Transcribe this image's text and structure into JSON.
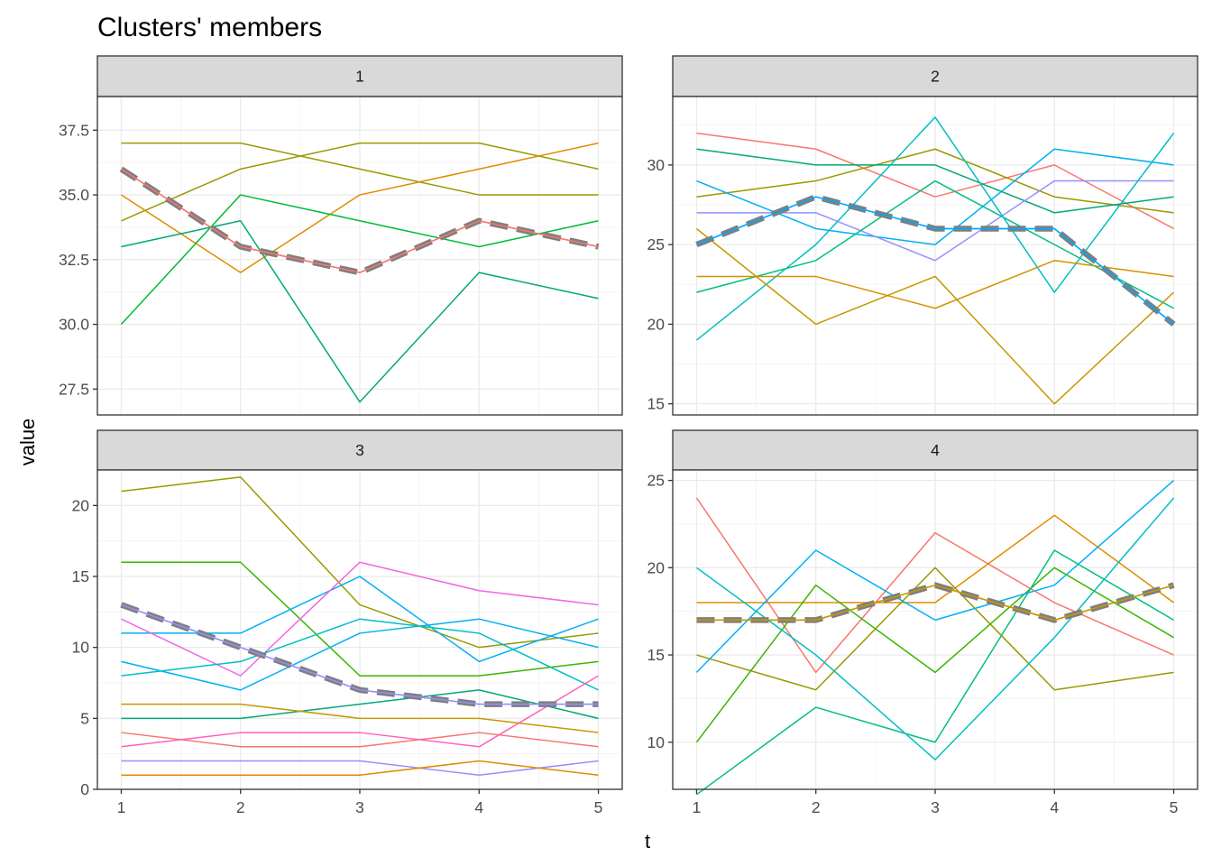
{
  "chart_data": {
    "type": "line",
    "title": "Clusters' members",
    "xlabel": "t",
    "ylabel": "value",
    "x": [
      1,
      2,
      3,
      4,
      5
    ],
    "grid": true,
    "legend": "none",
    "panels": [
      {
        "label": "1",
        "ylim": [
          26.5,
          38.8
        ],
        "yticks": [
          27.5,
          30.0,
          32.5,
          35.0,
          37.5
        ],
        "ytick_labels": [
          "27.5",
          "30.0",
          "32.5",
          "35.0",
          "37.5"
        ],
        "series": [
          {
            "color": "#F8766D",
            "values": [
              36,
              33,
              32,
              34,
              33
            ]
          },
          {
            "color": "#999900",
            "values": [
              37,
              37,
              36,
              35,
              35
            ]
          },
          {
            "color": "#999900",
            "values": [
              34,
              36,
              37,
              37,
              36
            ]
          },
          {
            "color": "#E08B00",
            "values": [
              35,
              32,
              35,
              36,
              37
            ]
          },
          {
            "color": "#00BA38",
            "values": [
              30,
              35,
              34,
              33,
              34
            ]
          },
          {
            "color": "#00A877",
            "values": [
              33,
              34,
              27,
              32,
              31
            ]
          }
        ],
        "centroid": {
          "color": "#F8766D",
          "values": [
            36,
            33,
            32,
            34,
            33
          ]
        }
      },
      {
        "label": "2",
        "ylim": [
          14.3,
          34.3
        ],
        "yticks": [
          15,
          20,
          25,
          30
        ],
        "ytick_labels": [
          "15",
          "20",
          "25",
          "30"
        ],
        "series": [
          {
            "color": "#F8766D",
            "values": [
              32,
              31,
              28,
              30,
              26
            ]
          },
          {
            "color": "#999900",
            "values": [
              28,
              29,
              31,
              28,
              27
            ]
          },
          {
            "color": "#00A877",
            "values": [
              31,
              30,
              30,
              27,
              28
            ]
          },
          {
            "color": "#00B0F6",
            "values": [
              29,
              26,
              25,
              31,
              30
            ]
          },
          {
            "color": "#9590FF",
            "values": [
              27,
              27,
              24,
              29,
              29
            ]
          },
          {
            "color": "#00BF7D",
            "values": [
              22,
              24,
              29,
              25,
              21
            ]
          },
          {
            "color": "#00BFC4",
            "values": [
              19,
              25,
              33,
              22,
              32
            ]
          },
          {
            "color": "#D39200",
            "values": [
              23,
              23,
              21,
              24,
              23
            ]
          },
          {
            "color": "#C49A00",
            "values": [
              26,
              20,
              23,
              15,
              22
            ]
          },
          {
            "color": "#00A9FF",
            "values": [
              25,
              28,
              26,
              26,
              20
            ]
          }
        ],
        "centroid": {
          "color": "#00A9FF",
          "values": [
            25,
            28,
            26,
            26,
            20
          ]
        }
      },
      {
        "label": "3",
        "ylim": [
          0,
          22.5
        ],
        "yticks": [
          0,
          5,
          10,
          15,
          20
        ],
        "ytick_labels": [
          "0",
          "5",
          "10",
          "15",
          "20"
        ],
        "series": [
          {
            "color": "#999900",
            "values": [
              21,
              22,
              13,
              10,
              11
            ]
          },
          {
            "color": "#39B600",
            "values": [
              16,
              16,
              8,
              8,
              9
            ]
          },
          {
            "color": "#00B0F6",
            "values": [
              11,
              11,
              15,
              9,
              12
            ]
          },
          {
            "color": "#00B0F6",
            "values": [
              9,
              7,
              11,
              12,
              10
            ]
          },
          {
            "color": "#F564E3",
            "values": [
              12,
              8,
              16,
              14,
              13
            ]
          },
          {
            "color": "#9590FF",
            "values": [
              13,
              10,
              7,
              6,
              6
            ]
          },
          {
            "color": "#00BFC4",
            "values": [
              8,
              9,
              12,
              11,
              7
            ]
          },
          {
            "color": "#00A877",
            "values": [
              5,
              5,
              6,
              7,
              5
            ]
          },
          {
            "color": "#C49A00",
            "values": [
              6,
              6,
              5,
              5,
              4
            ]
          },
          {
            "color": "#F8766D",
            "values": [
              4,
              3,
              3,
              4,
              3
            ]
          },
          {
            "color": "#FF62BC",
            "values": [
              3,
              4,
              4,
              3,
              8
            ]
          },
          {
            "color": "#9590FF",
            "values": [
              2,
              2,
              2,
              1,
              2
            ]
          },
          {
            "color": "#E08B00",
            "values": [
              1,
              1,
              1,
              2,
              1
            ]
          }
        ],
        "centroid": {
          "color": "#9590FF",
          "values": [
            13,
            10,
            7,
            6,
            6
          ]
        }
      },
      {
        "label": "4",
        "ylim": [
          7.3,
          25.6
        ],
        "yticks": [
          10,
          15,
          20,
          25
        ],
        "ytick_labels": [
          "10",
          "15",
          "20",
          "25"
        ],
        "series": [
          {
            "color": "#F8766D",
            "values": [
              24,
              14,
              22,
              18,
              15
            ]
          },
          {
            "color": "#E08B00",
            "values": [
              18,
              18,
              18,
              23,
              18
            ]
          },
          {
            "color": "#C49A00",
            "values": [
              17,
              17,
              19,
              17,
              19
            ]
          },
          {
            "color": "#999900",
            "values": [
              15,
              13,
              20,
              13,
              14
            ]
          },
          {
            "color": "#39B600",
            "values": [
              10,
              19,
              14,
              20,
              16
            ]
          },
          {
            "color": "#00BF7D",
            "values": [
              7,
              12,
              10,
              21,
              17
            ]
          },
          {
            "color": "#00BFC4",
            "values": [
              20,
              15,
              9,
              16,
              24
            ]
          },
          {
            "color": "#00B0F6",
            "values": [
              14,
              21,
              17,
              19,
              25
            ]
          }
        ],
        "centroid": {
          "color": "#C49A00",
          "values": [
            17,
            17,
            19,
            17,
            19
          ]
        }
      }
    ]
  }
}
